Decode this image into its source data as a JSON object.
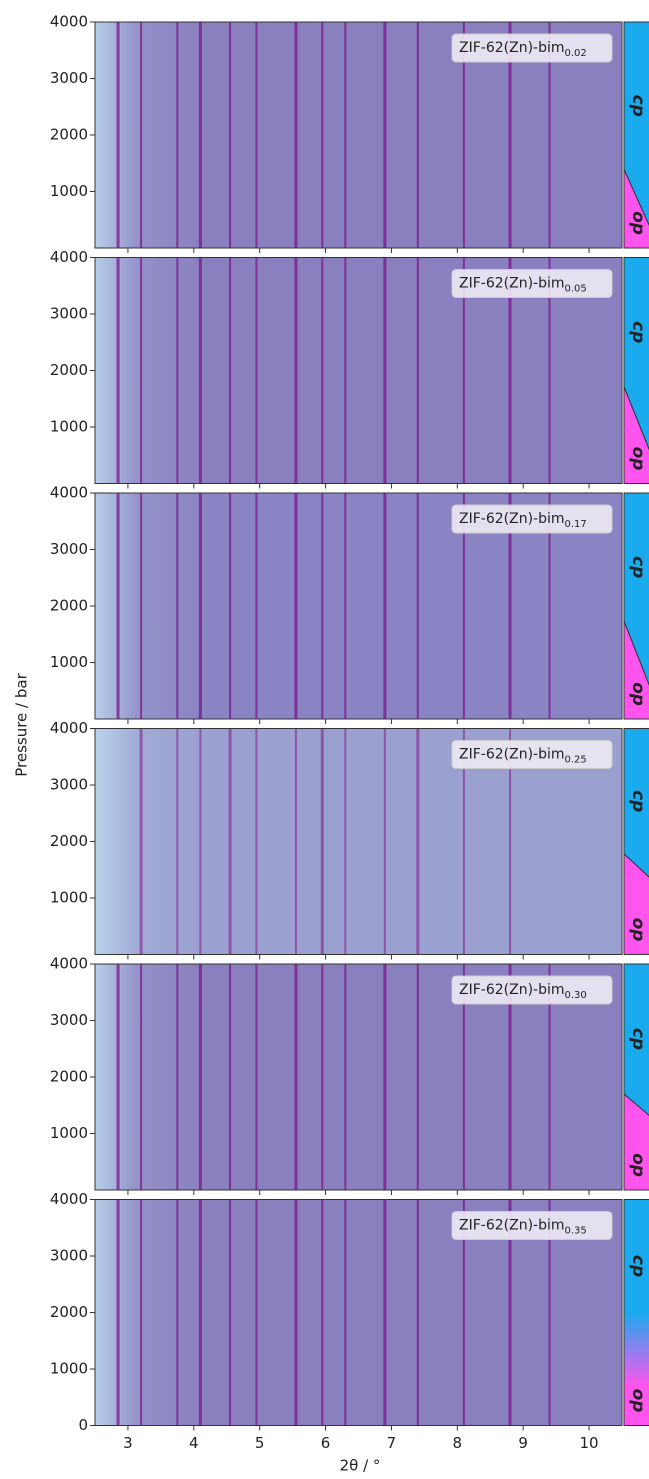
{
  "xlabel": "2θ /  °",
  "ylabel": "Pressure  /  bar",
  "chart_data": [
    {
      "type": "heatmap",
      "label": "ZIF-62(Zn)-bim",
      "label_sub": "0.02",
      "color": "#8a80c0",
      "peak_color": "#7a1686",
      "xlim": [
        2.5,
        10.5
      ],
      "ylim": [
        0,
        4000
      ],
      "xticks": [
        3,
        4,
        5,
        6,
        7,
        8,
        9,
        10
      ],
      "yticks": [
        1000,
        2000,
        3000,
        4000
      ],
      "peaks": [
        2.85,
        3.2,
        3.75,
        4.1,
        4.55,
        4.95,
        5.55,
        5.95,
        6.3,
        6.9,
        7.4,
        8.1,
        8.8,
        9.4
      ],
      "phases": [
        "cp",
        "op"
      ],
      "phase_boundary": [
        1390,
        330
      ],
      "gradient": false
    },
    {
      "type": "heatmap",
      "label": "ZIF-62(Zn)-bim",
      "label_sub": "0.05",
      "color": "#8a80c0",
      "peak_color": "#7a1686",
      "xlim": [
        2.5,
        10.5
      ],
      "ylim": [
        0,
        4000
      ],
      "xticks": [
        3,
        4,
        5,
        6,
        7,
        8,
        9,
        10
      ],
      "yticks": [
        1000,
        2000,
        3000,
        4000
      ],
      "peaks": [
        2.85,
        3.2,
        3.75,
        4.1,
        4.55,
        4.95,
        5.55,
        5.95,
        6.3,
        6.9,
        7.4,
        8.1,
        8.8,
        9.4
      ],
      "phases": [
        "cp",
        "op"
      ],
      "phase_boundary": [
        1710,
        520
      ],
      "gradient": false
    },
    {
      "type": "heatmap",
      "label": "ZIF-62(Zn)-bim",
      "label_sub": "0.17",
      "color": "#8a84c4",
      "peak_color": "#7a1686",
      "xlim": [
        2.5,
        10.5
      ],
      "ylim": [
        0,
        4000
      ],
      "xticks": [
        3,
        4,
        5,
        6,
        7,
        8,
        9,
        10
      ],
      "yticks": [
        1000,
        2000,
        3000,
        4000
      ],
      "peaks": [
        2.85,
        3.2,
        3.75,
        4.1,
        4.55,
        4.95,
        5.55,
        5.95,
        6.3,
        6.9,
        7.4,
        8.1,
        8.8,
        9.4
      ],
      "phases": [
        "cp",
        "op"
      ],
      "phase_boundary": [
        1730,
        520
      ],
      "gradient": false
    },
    {
      "type": "heatmap",
      "label": "ZIF-62(Zn)-bim",
      "label_sub": "0.25",
      "color": "#9aa0d0",
      "peak_color": "#8a3c9a",
      "xlim": [
        2.5,
        10.5
      ],
      "ylim": [
        0,
        4000
      ],
      "xticks": [
        3,
        4,
        5,
        6,
        7,
        8,
        9,
        10
      ],
      "yticks": [
        1000,
        2000,
        3000,
        4000
      ],
      "peaks": [
        3.2,
        3.75,
        4.1,
        4.55,
        4.95,
        5.55,
        5.95,
        6.3,
        6.9,
        7.4,
        8.1,
        8.8
      ],
      "phases": [
        "cp",
        "op"
      ],
      "phase_boundary": [
        1780,
        1340
      ],
      "gradient": false
    },
    {
      "type": "heatmap",
      "label": "ZIF-62(Zn)-bim",
      "label_sub": "0.30",
      "color": "#8a80c0",
      "peak_color": "#7a1686",
      "xlim": [
        2.5,
        10.5
      ],
      "ylim": [
        0,
        4000
      ],
      "xticks": [
        3,
        4,
        5,
        6,
        7,
        8,
        9,
        10
      ],
      "yticks": [
        1000,
        2000,
        3000,
        4000
      ],
      "peaks": [
        2.85,
        3.2,
        3.75,
        4.1,
        4.55,
        4.95,
        5.55,
        5.95,
        6.3,
        6.9,
        7.4,
        8.1,
        8.8,
        9.4
      ],
      "phases": [
        "cp",
        "op"
      ],
      "phase_boundary": [
        1700,
        1290
      ],
      "gradient": false
    },
    {
      "type": "heatmap",
      "label": "ZIF-62(Zn)-bim",
      "label_sub": "0.35",
      "color": "#8a80c0",
      "peak_color": "#7a1686",
      "xlim": [
        2.5,
        10.5
      ],
      "ylim": [
        0,
        4000
      ],
      "xticks": [
        3,
        4,
        5,
        6,
        7,
        8,
        9,
        10
      ],
      "yticks": [
        0,
        1000,
        2000,
        3000,
        4000
      ],
      "peaks": [
        2.85,
        3.2,
        3.75,
        4.1,
        4.55,
        4.95,
        5.55,
        5.95,
        6.3,
        6.9,
        7.4,
        8.1,
        8.8,
        9.4
      ],
      "phases": [
        "cp",
        "op"
      ],
      "phase_boundary": [
        2000,
        700
      ],
      "gradient": true
    }
  ]
}
